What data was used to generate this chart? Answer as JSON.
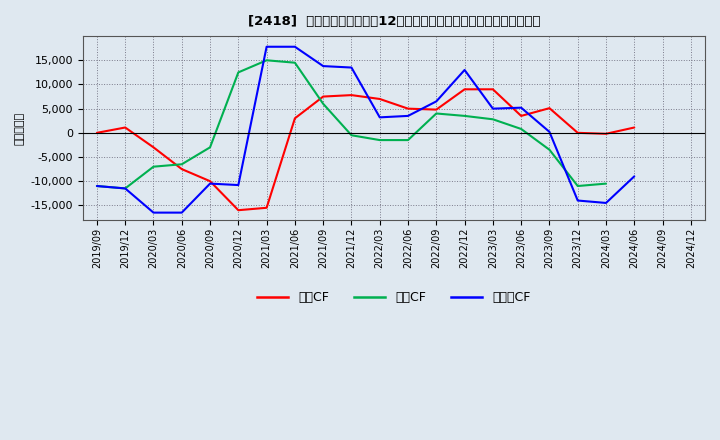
{
  "title": "[2418]  キャッシュフローの12か月移動合計の対前年同期増減額の推移",
  "ylabel": "（百万円）",
  "background_color": "#dfe8f0",
  "plot_bg_color": "#dfe8f0",
  "x_labels": [
    "2019/09",
    "2019/12",
    "2020/03",
    "2020/06",
    "2020/09",
    "2020/12",
    "2021/03",
    "2021/06",
    "2021/09",
    "2021/12",
    "2022/03",
    "2022/06",
    "2022/09",
    "2022/12",
    "2023/03",
    "2023/06",
    "2023/09",
    "2023/12",
    "2024/03",
    "2024/06",
    "2024/09",
    "2024/12"
  ],
  "series": {
    "営業CF": {
      "color": "#ff0000",
      "values": [
        0,
        1100,
        -3000,
        -7500,
        -10000,
        -16000,
        -15500,
        3000,
        7500,
        7800,
        7000,
        5000,
        4800,
        9000,
        9000,
        3500,
        5100,
        0,
        -200,
        1100,
        null,
        null
      ]
    },
    "投賃CF": {
      "color": "#00b050",
      "values": [
        -11000,
        -11500,
        -7000,
        -6500,
        -3000,
        12500,
        15000,
        14500,
        6000,
        -500,
        -1500,
        -1500,
        4000,
        3500,
        2800,
        800,
        -3500,
        -11000,
        -10500,
        null,
        null,
        null
      ]
    },
    "フリーCF": {
      "color": "#0000ff",
      "values": [
        -11000,
        -11500,
        -16500,
        -16500,
        -10500,
        -10800,
        17800,
        17800,
        13800,
        13500,
        3200,
        3500,
        6500,
        13000,
        5000,
        5200,
        200,
        -14000,
        -14500,
        -9000,
        null,
        null
      ]
    }
  },
  "ylim": [
    -18000,
    20000
  ],
  "yticks": [
    -15000,
    -10000,
    -5000,
    0,
    5000,
    10000,
    15000
  ],
  "legend_labels": [
    "営業CF",
    "投賃CF",
    "フリーCF"
  ],
  "legend_colors": [
    "#ff0000",
    "#00b050",
    "#0000ff"
  ]
}
